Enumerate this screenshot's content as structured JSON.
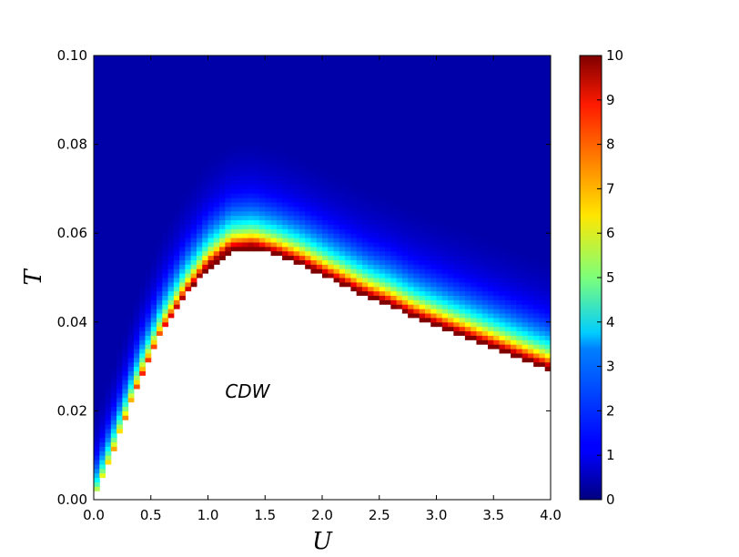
{
  "chart_data": {
    "type": "heatmap",
    "xlabel": "U",
    "ylabel": "T",
    "xlim": [
      0.0,
      4.0
    ],
    "ylim": [
      0.0,
      0.1
    ],
    "x_ticks": [
      "0.0",
      "0.5",
      "1.0",
      "1.5",
      "2.0",
      "2.5",
      "3.0",
      "3.5",
      "4.0"
    ],
    "y_ticks": [
      "0.00",
      "0.02",
      "0.04",
      "0.06",
      "0.08",
      "0.10"
    ],
    "colorbar": {
      "colormap": "jet",
      "range": [
        0,
        10
      ],
      "ticks": [
        "0",
        "1",
        "2",
        "3",
        "4",
        "5",
        "6",
        "7",
        "8",
        "9",
        "10"
      ]
    },
    "annotation": {
      "text": "CDW",
      "x": 1.15,
      "y": 0.023
    },
    "phase_boundary": {
      "description_values": "CDW transition temperature Tc(U); region below is blank (ordered phase), values saturate at 10 above it",
      "U": [
        0.0,
        0.2,
        0.4,
        0.6,
        0.8,
        1.0,
        1.2,
        1.4,
        1.6,
        1.8,
        2.0,
        2.2,
        2.4,
        2.6,
        2.8,
        3.0,
        3.2,
        3.4,
        3.6,
        3.8,
        4.0
      ],
      "Tc": [
        0.0,
        0.013,
        0.027,
        0.038,
        0.046,
        0.052,
        0.056,
        0.0565,
        0.055,
        0.053,
        0.0505,
        0.048,
        0.0455,
        0.0435,
        0.041,
        0.039,
        0.037,
        0.035,
        0.033,
        0.031,
        0.029
      ]
    }
  }
}
